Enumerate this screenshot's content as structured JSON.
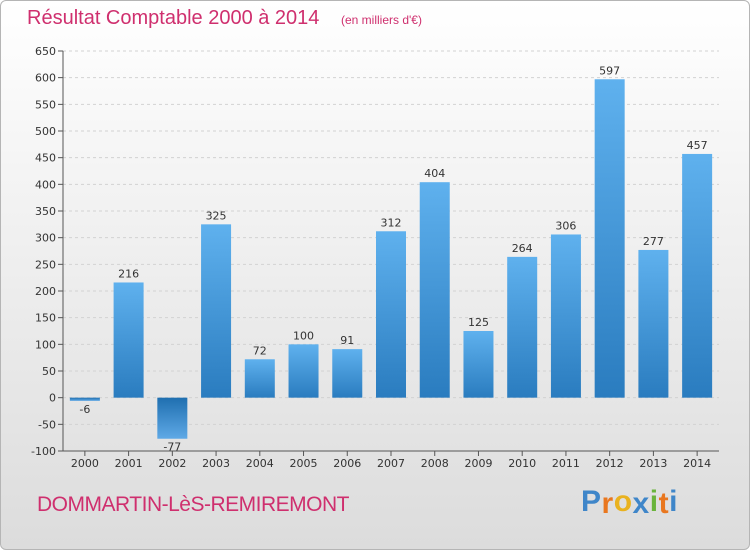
{
  "title": "Résultat Comptable 2000 à 2014",
  "subtitle": "(en milliers d'€)",
  "commune": "DOMMARTIN-LèS-REMIREMONT",
  "logo": {
    "letters": [
      "P",
      "r",
      "o",
      "x",
      "i",
      "t",
      "i"
    ],
    "colors": [
      "#3f86c9",
      "#e9771f",
      "#e9b21f",
      "#3f86c9",
      "#6ab43c",
      "#e9771f",
      "#3f86c9"
    ]
  },
  "colors": {
    "title": "#cf2f6e",
    "bar_top": "#5fb1ee",
    "bar_bottom": "#2a7cbf",
    "neg_bar_top": "#1f6fb0",
    "neg_bar_bottom": "#5fa9e6",
    "grid": "#d2d2d2"
  },
  "chart_data": {
    "type": "bar",
    "categories": [
      "2000",
      "2001",
      "2002",
      "2003",
      "2004",
      "2005",
      "2006",
      "2007",
      "2008",
      "2009",
      "2010",
      "2011",
      "2012",
      "2013",
      "2014"
    ],
    "values": [
      -6,
      216,
      -77,
      325,
      72,
      100,
      91,
      312,
      404,
      125,
      264,
      306,
      597,
      277,
      457
    ],
    "labels": [
      "-6",
      "216",
      "-77",
      "325",
      "72",
      "100",
      "91",
      "312",
      "404",
      "125",
      "264",
      "306",
      "597",
      "277",
      "457"
    ],
    "yticks": [
      650,
      600,
      550,
      500,
      450,
      400,
      350,
      300,
      250,
      200,
      150,
      100,
      50,
      0,
      -50,
      -100
    ],
    "ylim": [
      -100,
      650
    ],
    "grid": true,
    "legend": "none"
  }
}
